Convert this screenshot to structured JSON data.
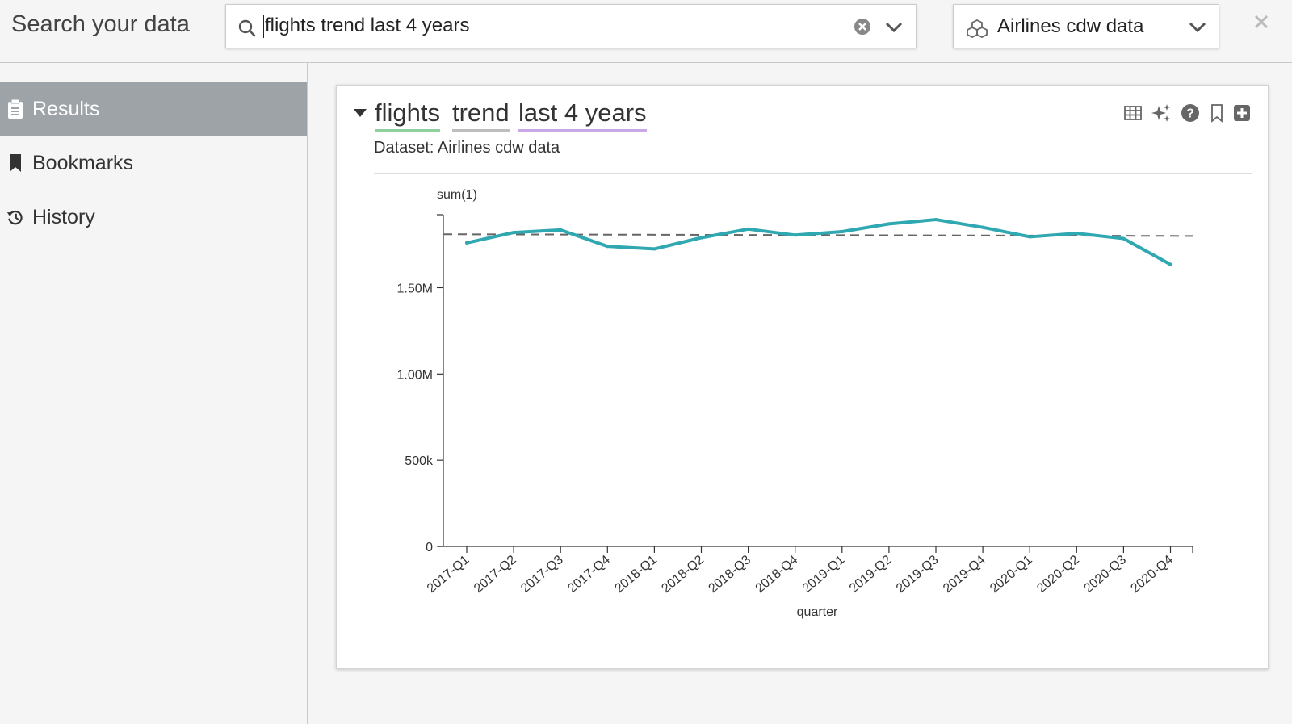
{
  "app": {
    "title": "Search your data"
  },
  "search": {
    "query": "flights trend last 4 years"
  },
  "dataset_selector": {
    "label": "Airlines cdw data"
  },
  "sidebar": {
    "items": [
      {
        "label": "Results",
        "icon": "clipboard-icon",
        "active": true
      },
      {
        "label": "Bookmarks",
        "icon": "bookmark-icon",
        "active": false
      },
      {
        "label": "History",
        "icon": "history-icon",
        "active": false
      }
    ]
  },
  "result": {
    "tokens": [
      {
        "text": "flights",
        "underline": "#8fd19e"
      },
      {
        "text": "trend",
        "underline": "#bdbdbd"
      },
      {
        "text": "last 4 years",
        "underline": "#c9a8e8"
      }
    ],
    "subtitle": "Dataset: Airlines cdw data",
    "tools": [
      "table-icon",
      "sparkle-icon",
      "help-icon",
      "bookmark-outline-icon",
      "add-icon"
    ]
  },
  "chart_data": {
    "type": "line",
    "xlabel": "quarter",
    "ylabel": "sum(1)",
    "categories": [
      "2017-Q1",
      "2017-Q2",
      "2017-Q3",
      "2017-Q4",
      "2018-Q1",
      "2018-Q2",
      "2018-Q3",
      "2018-Q4",
      "2019-Q1",
      "2019-Q2",
      "2019-Q3",
      "2019-Q4",
      "2020-Q1",
      "2020-Q2",
      "2020-Q3",
      "2020-Q4"
    ],
    "values": [
      1760000,
      1820000,
      1835000,
      1740000,
      1725000,
      1790000,
      1840000,
      1805000,
      1825000,
      1870000,
      1895000,
      1850000,
      1795000,
      1815000,
      1785000,
      1635000
    ],
    "reference_line": {
      "style": "dashed",
      "y_start": 1810000,
      "y_end": 1800000
    },
    "y_ticks": [
      {
        "value": 0,
        "label": "0"
      },
      {
        "value": 500000,
        "label": "500k"
      },
      {
        "value": 1000000,
        "label": "1.00M"
      },
      {
        "value": 1500000,
        "label": "1.50M"
      }
    ],
    "ylim": [
      0,
      1900000
    ],
    "line_color": "#2fa8b1",
    "grid": false
  }
}
